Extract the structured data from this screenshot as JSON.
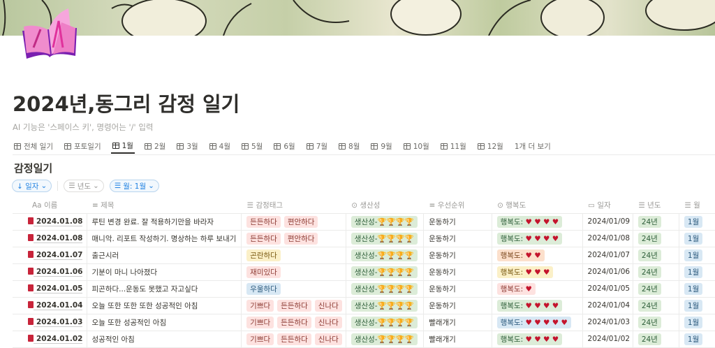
{
  "page": {
    "title": "2024년,동그리 감정 일기",
    "hint": "AI 기능은 '스페이스 키', 명령어는 '/' 입력"
  },
  "tabs": [
    {
      "label": "전체 일기",
      "icon": "table-icon"
    },
    {
      "label": "포토일기",
      "icon": "gallery-icon"
    },
    {
      "label": "1월",
      "icon": "table-icon",
      "active": true
    },
    {
      "label": "2월",
      "icon": "table-icon"
    },
    {
      "label": "3월",
      "icon": "table-icon"
    },
    {
      "label": "4월",
      "icon": "table-icon"
    },
    {
      "label": "5월",
      "icon": "table-icon"
    },
    {
      "label": "6월",
      "icon": "table-icon"
    },
    {
      "label": "7월",
      "icon": "table-icon"
    },
    {
      "label": "8월",
      "icon": "table-icon"
    },
    {
      "label": "9월",
      "icon": "table-icon"
    },
    {
      "label": "10월",
      "icon": "table-icon"
    },
    {
      "label": "11월",
      "icon": "table-icon"
    },
    {
      "label": "12월",
      "icon": "table-icon"
    }
  ],
  "more_tabs": "1개 더 보기",
  "view_title": "감정일기",
  "filters": {
    "sort": "↓ 일자",
    "year": "년도",
    "month": "월: 1월"
  },
  "columns": [
    "Aa 이름",
    "제목",
    "감정태그",
    "생산성",
    "우선순위",
    "행복도",
    "일자",
    "년도",
    "월"
  ],
  "rows": [
    {
      "name": "2024.01.08",
      "title": "루틴 변경 완료. 잘 적용하기만을 바라자",
      "tags": [
        "든든하다",
        "편안하다"
      ],
      "prod": "생산성-",
      "trophies": 4,
      "priority": "운동하기",
      "happy": "행복도:",
      "hearts": 4,
      "happy_color": "grn",
      "date": "2024/01/09",
      "year": "24년",
      "month": "1월"
    },
    {
      "name": "2024.01.08",
      "title": "매니악. 리포트 작성하기. 명상하는 하루 보내기",
      "tags": [
        "든든하다",
        "편안하다"
      ],
      "prod": "생산성-",
      "trophies": 4,
      "priority": "운동하기",
      "happy": "행복도:",
      "hearts": 4,
      "happy_color": "grn",
      "date": "2024/01/08",
      "year": "24년",
      "month": "1월"
    },
    {
      "name": "2024.01.07",
      "title": "출근시러",
      "tags": [
        "곤란하다"
      ],
      "tag_color": "yel",
      "prod": "생산성-",
      "trophies": 4,
      "priority": "운동하기",
      "happy": "행복도:",
      "hearts": 2,
      "happy_color": "org",
      "date": "2024/01/07",
      "year": "24년",
      "month": "1월"
    },
    {
      "name": "2024.01.06",
      "title": "기분이 마니 나아졌다",
      "tags": [
        "재미있다"
      ],
      "prod": "생산성-",
      "trophies": 4,
      "priority": "운동하기",
      "happy": "행복도:",
      "hearts": 3,
      "happy_color": "yel",
      "date": "2024/01/06",
      "year": "24년",
      "month": "1월"
    },
    {
      "name": "2024.01.05",
      "title": "피곤하다...운동도 못했고 자고싶다",
      "tags": [
        "우울하다"
      ],
      "tag_color": "blu",
      "prod": "생산성-",
      "trophies": 4,
      "priority": "운동하기",
      "happy": "행복도:",
      "hearts": 1,
      "happy_color": "red",
      "date": "2024/01/05",
      "year": "24년",
      "month": "1월"
    },
    {
      "name": "2024.01.04",
      "title": "오늘 또한 또한 또한 성공적인 아침",
      "tags": [
        "기쁘다",
        "든든하다",
        "신나다"
      ],
      "prod": "생산성-",
      "trophies": 4,
      "priority": "운동하기",
      "happy": "행복도:",
      "hearts": 4,
      "happy_color": "grn",
      "date": "2024/01/04",
      "year": "24년",
      "month": "1월"
    },
    {
      "name": "2024.01.03",
      "title": "오늘 또한 성공적인 아침",
      "tags": [
        "기쁘다",
        "든든하다",
        "신나다"
      ],
      "prod": "생산성-",
      "trophies": 4,
      "priority": "빨래개기",
      "happy": "행복도:",
      "hearts": 5,
      "happy_color": "blu",
      "date": "2024/01/03",
      "year": "24년",
      "month": "1월"
    },
    {
      "name": "2024.01.02",
      "title": "성공적인 아침",
      "tags": [
        "기쁘다",
        "든든하다",
        "신나다"
      ],
      "prod": "생산성-",
      "trophies": 4,
      "priority": "빨래개기",
      "happy": "행복도:",
      "hearts": 4,
      "happy_color": "grn",
      "date": "2024/01/02",
      "year": "24년",
      "month": "1월"
    }
  ]
}
